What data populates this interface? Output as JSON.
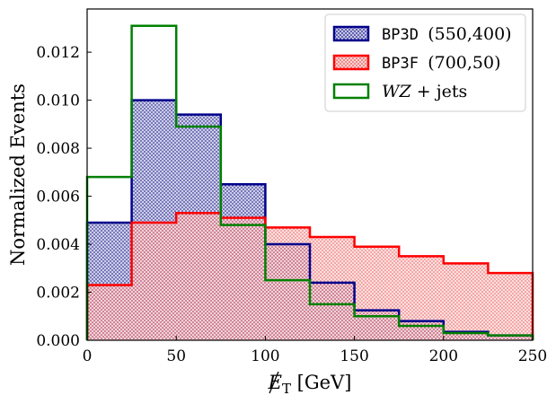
{
  "chart_data": {
    "type": "histogram",
    "title": "",
    "xlabel": "E_T [GeV]",
    "xlabel_parts": {
      "symbol": "E",
      "subscript": "T",
      "unit": " [GeV]"
    },
    "ylabel": "Normalized Events",
    "xlim": [
      0,
      250
    ],
    "ylim": [
      0,
      0.0138
    ],
    "xticks": [
      0,
      50,
      100,
      150,
      200,
      250
    ],
    "xtick_labels": [
      "0",
      "50",
      "100",
      "150",
      "200",
      "250"
    ],
    "yticks": [
      0.0,
      0.002,
      0.004,
      0.006,
      0.008,
      0.01,
      0.012
    ],
    "ytick_labels": [
      "0.000",
      "0.002",
      "0.004",
      "0.006",
      "0.008",
      "0.010",
      "0.012"
    ],
    "bin_edges": [
      0,
      25,
      50,
      75,
      100,
      125,
      150,
      175,
      200,
      225,
      250
    ],
    "grid": false,
    "legend_position": "top-right",
    "series": [
      {
        "name": "BP3D (550,400)",
        "label_code": "BP3D",
        "label_rest": "(550,400)",
        "style": "filled-hatched",
        "color": "#00008b",
        "fill": "#8c8cc4",
        "values": [
          0.0049,
          0.01,
          0.0094,
          0.0065,
          0.004,
          0.0024,
          0.00125,
          0.0008,
          0.00035,
          0.0002
        ]
      },
      {
        "name": "BP3F (700,50)",
        "label_code": "BP3F",
        "label_rest": "(700,50)",
        "style": "filled-hatched",
        "color": "#ff0000",
        "fill": "#f2a0a0",
        "values": [
          0.0023,
          0.0049,
          0.0053,
          0.0051,
          0.0047,
          0.0043,
          0.0039,
          0.0035,
          0.0032,
          0.0028
        ]
      },
      {
        "name": "WZ + jets",
        "label_math": "WZ + jets",
        "style": "step",
        "color": "#008000",
        "fill": "none",
        "values": [
          0.0068,
          0.0131,
          0.0089,
          0.0048,
          0.0025,
          0.0015,
          0.001,
          0.0006,
          0.0003,
          0.0002
        ]
      }
    ]
  }
}
